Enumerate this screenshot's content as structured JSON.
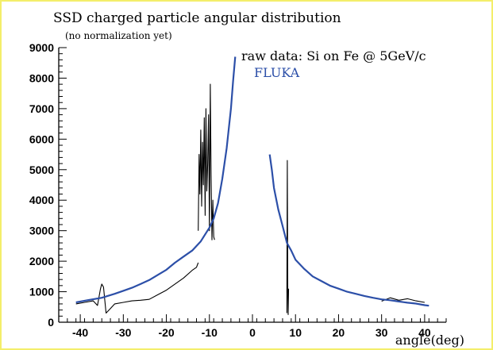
{
  "chart_data": {
    "type": "line",
    "title": "SSD charged particle angular distribution",
    "subtitle": "(no normalization yet)",
    "xlabel": "angle(deg)",
    "ylabel": "",
    "xlim": [
      -45,
      45
    ],
    "ylim": [
      0,
      9000
    ],
    "x_ticks": [
      -40,
      -30,
      -20,
      -10,
      0,
      10,
      20,
      30,
      40
    ],
    "y_ticks": [
      0,
      1000,
      2000,
      3000,
      4000,
      5000,
      6000,
      7000,
      8000,
      9000
    ],
    "grid": false,
    "legend_placement": "top-right",
    "series": [
      {
        "name": "raw data: Si on Fe @ 5GeV/c",
        "color": "#000000",
        "segments": [
          {
            "x": [
              -41,
              -39,
              -37,
              -36,
              -35.3,
              -35,
              -34.6,
              -34,
              -33,
              -32,
              -30,
              -28,
              -26,
              -24,
              -22,
              -20,
              -18,
              -16,
              -14,
              -13,
              -12.6
            ],
            "y": [
              600,
              650,
              700,
              550,
              1100,
              1250,
              1150,
              300,
              450,
              600,
              650,
              700,
              720,
              750,
              900,
              1050,
              1250,
              1450,
              1700,
              1800,
              1950
            ]
          },
          {
            "x": [
              -12.6,
              -12.4,
              -12.2,
              -12,
              -11.8,
              -11.6,
              -11.4,
              -11.2,
              -11,
              -10.8,
              -10.6,
              -10.4,
              -10.2,
              -10,
              -9.8,
              -9.6,
              -9.4,
              -9.2,
              -9,
              -8.8
            ],
            "y": [
              3000,
              5500,
              4200,
              6300,
              3800,
              5900,
              4500,
              6700,
              3500,
              7000,
              4300,
              5200,
              6800,
              3000,
              7800,
              4800,
              2700,
              4000,
              2800,
              2700
            ]
          },
          {
            "x": [
              8,
              8,
              8.1,
              8.2,
              8.3,
              8.4
            ],
            "y": [
              300,
              1200,
              5300,
              1000,
              250,
              1100
            ]
          },
          {
            "x": [
              30,
              32,
              34,
              36,
              38,
              40
            ],
            "y": [
              690,
              800,
              720,
              770,
              700,
              650
            ]
          }
        ]
      },
      {
        "name": "FLUKA",
        "color": "#2c4fa8",
        "segments": [
          {
            "x": [
              -41,
              -38,
              -35,
              -32,
              -30,
              -28,
              -26,
              -24,
              -22,
              -20,
              -18,
              -16,
              -14,
              -12,
              -10,
              -9,
              -8,
              -7,
              -6,
              -5,
              -4.5,
              -4
            ],
            "y": [
              650,
              730,
              800,
              930,
              1030,
              1130,
              1250,
              1380,
              1550,
              1720,
              1950,
              2150,
              2350,
              2650,
              3100,
              3400,
              3900,
              4700,
              5700,
              7000,
              7900,
              8700
            ]
          },
          {
            "x": [
              4,
              4.5,
              5,
              6,
              7,
              8,
              9,
              10,
              12,
              14,
              16,
              18,
              20,
              22,
              24,
              26,
              28,
              30,
              32,
              34,
              36,
              38,
              40,
              41
            ],
            "y": [
              5500,
              5000,
              4400,
              3700,
              3150,
              2600,
              2350,
              2050,
              1750,
              1500,
              1350,
              1200,
              1100,
              1000,
              930,
              860,
              800,
              750,
              720,
              680,
              640,
              610,
              560,
              540
            ]
          }
        ]
      }
    ]
  },
  "legend": {
    "data_label": "raw data: Si on Fe @ 5GeV/c",
    "fluka_label": "FLUKA"
  }
}
